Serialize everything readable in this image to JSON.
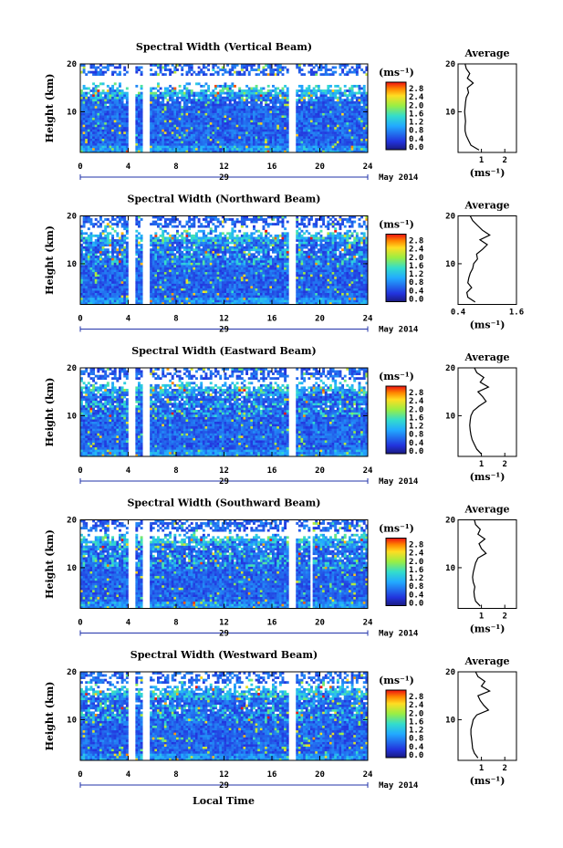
{
  "chart_data": [
    {
      "type": "heatmap",
      "title": "Spectral Width (Vertical Beam)",
      "ylabel": "Height (km)",
      "ylim": [
        1.5,
        20
      ],
      "yticks": [
        10,
        20
      ],
      "xlim": [
        0,
        24
      ],
      "xticks": [
        0,
        4,
        8,
        12,
        16,
        20,
        24
      ],
      "date_label": "29",
      "month_label": "May 2014",
      "colorbar": {
        "unit": "(ms⁻¹)",
        "ticks": [
          "0.0",
          "0.4",
          "0.8",
          "1.2",
          "1.6",
          "2.0",
          "2.4",
          "2.8"
        ]
      },
      "data_gaps": [
        [
          4.1,
          4.5
        ],
        [
          5.3,
          5.7
        ],
        [
          17.5,
          17.9
        ]
      ],
      "profile": {
        "title": "Average",
        "xlabel": "(ms⁻¹)",
        "xlim": [
          0,
          2.5
        ],
        "xticks": [
          "1",
          "2"
        ],
        "heights": [
          2,
          3,
          4,
          5,
          6,
          7,
          8,
          9,
          10,
          11,
          12,
          13,
          14,
          15,
          16,
          17,
          18,
          19,
          20
        ],
        "values": [
          0.9,
          0.55,
          0.45,
          0.35,
          0.3,
          0.3,
          0.32,
          0.3,
          0.28,
          0.3,
          0.32,
          0.35,
          0.45,
          0.4,
          0.65,
          0.4,
          0.5,
          0.35,
          0.3
        ]
      }
    },
    {
      "type": "heatmap",
      "title": "Spectral Width (Northward Beam)",
      "ylabel": "Height (km)",
      "ylim": [
        1.5,
        20
      ],
      "yticks": [
        10,
        20
      ],
      "xlim": [
        0,
        24
      ],
      "xticks": [
        0,
        4,
        8,
        12,
        16,
        20,
        24
      ],
      "date_label": "29",
      "month_label": "May 2014",
      "colorbar": {
        "unit": "(ms⁻¹)",
        "ticks": [
          "0.0",
          "0.4",
          "0.8",
          "1.2",
          "1.6",
          "2.0",
          "2.4",
          "2.8"
        ]
      },
      "data_gaps": [
        [
          4.1,
          4.5
        ],
        [
          5.3,
          5.7
        ],
        [
          17.5,
          17.9
        ]
      ],
      "profile": {
        "title": "Average",
        "xlabel": "(ms⁻¹)",
        "xlim": [
          0.4,
          1.6
        ],
        "xticks": [
          "0.4",
          "1.6"
        ],
        "heights": [
          2,
          3,
          4,
          5,
          6,
          7,
          8,
          9,
          10,
          11,
          12,
          13,
          14,
          15,
          16,
          17,
          18,
          19,
          20
        ],
        "values": [
          0.75,
          0.6,
          0.58,
          0.68,
          0.6,
          0.62,
          0.65,
          0.7,
          0.72,
          0.8,
          0.78,
          0.9,
          1.0,
          0.85,
          1.05,
          0.9,
          0.8,
          0.7,
          0.65
        ]
      }
    },
    {
      "type": "heatmap",
      "title": "Spectral Width (Eastward Beam)",
      "ylabel": "Height (km)",
      "ylim": [
        1.5,
        20
      ],
      "yticks": [
        10,
        20
      ],
      "xlim": [
        0,
        24
      ],
      "xticks": [
        0,
        4,
        8,
        12,
        16,
        20,
        24
      ],
      "date_label": "29",
      "month_label": "May 2014",
      "colorbar": {
        "unit": "(ms⁻¹)",
        "ticks": [
          "0.0",
          "0.4",
          "0.8",
          "1.2",
          "1.6",
          "2.0",
          "2.4",
          "2.8"
        ]
      },
      "data_gaps": [
        [
          4.1,
          4.5
        ],
        [
          5.3,
          5.7
        ],
        [
          17.5,
          17.9
        ]
      ],
      "profile": {
        "title": "Average",
        "xlabel": "(ms⁻¹)",
        "xlim": [
          0,
          2.5
        ],
        "xticks": [
          "1",
          "2"
        ],
        "heights": [
          2,
          3,
          4,
          5,
          6,
          7,
          8,
          9,
          10,
          11,
          12,
          13,
          14,
          15,
          16,
          17,
          18,
          19,
          20
        ],
        "values": [
          1.0,
          0.8,
          0.7,
          0.6,
          0.55,
          0.52,
          0.5,
          0.52,
          0.55,
          0.65,
          0.9,
          1.2,
          1.05,
          0.85,
          1.3,
          0.95,
          1.1,
          0.8,
          0.7
        ]
      }
    },
    {
      "type": "heatmap",
      "title": "Spectral Width (Southward Beam)",
      "ylabel": "Height (km)",
      "ylim": [
        1.5,
        20
      ],
      "yticks": [
        10,
        20
      ],
      "xlim": [
        0,
        24
      ],
      "xticks": [
        0,
        4,
        8,
        12,
        16,
        20,
        24
      ],
      "date_label": "29",
      "month_label": "May 2014",
      "colorbar": {
        "unit": "(ms⁻¹)",
        "ticks": [
          "0.0",
          "0.4",
          "0.8",
          "1.2",
          "1.6",
          "2.0",
          "2.4",
          "2.8"
        ]
      },
      "data_gaps": [
        [
          4.1,
          4.5
        ],
        [
          5.3,
          5.7
        ],
        [
          17.5,
          17.9
        ],
        [
          19.2,
          19.4
        ]
      ],
      "profile": {
        "title": "Average",
        "xlabel": "(ms⁻¹)",
        "xlim": [
          0,
          2.5
        ],
        "xticks": [
          "1",
          "2"
        ],
        "heights": [
          2,
          3,
          4,
          5,
          6,
          7,
          8,
          9,
          10,
          11,
          12,
          13,
          14,
          15,
          16,
          17,
          18,
          19,
          20
        ],
        "values": [
          0.95,
          0.75,
          0.7,
          0.68,
          0.72,
          0.65,
          0.62,
          0.65,
          0.7,
          0.75,
          0.85,
          1.2,
          1.0,
          0.9,
          1.15,
          0.85,
          0.95,
          0.75,
          0.7
        ]
      }
    },
    {
      "type": "heatmap",
      "title": "Spectral Width (Westward Beam)",
      "ylabel": "Height (km)",
      "ylim": [
        1.5,
        20
      ],
      "yticks": [
        10,
        20
      ],
      "xlim": [
        0,
        24
      ],
      "xticks": [
        0,
        4,
        8,
        12,
        16,
        20,
        24
      ],
      "date_label": "29",
      "xlabel": "Local Time",
      "month_label": "May 2014",
      "colorbar": {
        "unit": "(ms⁻¹)",
        "ticks": [
          "0.0",
          "0.4",
          "0.8",
          "1.2",
          "1.6",
          "2.0",
          "2.4",
          "2.8"
        ]
      },
      "data_gaps": [
        [
          4.1,
          4.5
        ],
        [
          5.3,
          5.7
        ],
        [
          17.5,
          17.9
        ]
      ],
      "profile": {
        "title": "Average",
        "xlabel": "(ms⁻¹)",
        "xlim": [
          0,
          2.5
        ],
        "xticks": [
          "1",
          "2"
        ],
        "heights": [
          2,
          3,
          4,
          5,
          6,
          7,
          8,
          9,
          10,
          11,
          12,
          13,
          14,
          15,
          16,
          17,
          18,
          19,
          20
        ],
        "values": [
          0.85,
          0.7,
          0.62,
          0.6,
          0.58,
          0.55,
          0.55,
          0.6,
          0.65,
          0.8,
          1.3,
          1.1,
          0.95,
          0.85,
          1.35,
          1.0,
          1.15,
          0.85,
          0.75
        ]
      }
    }
  ]
}
